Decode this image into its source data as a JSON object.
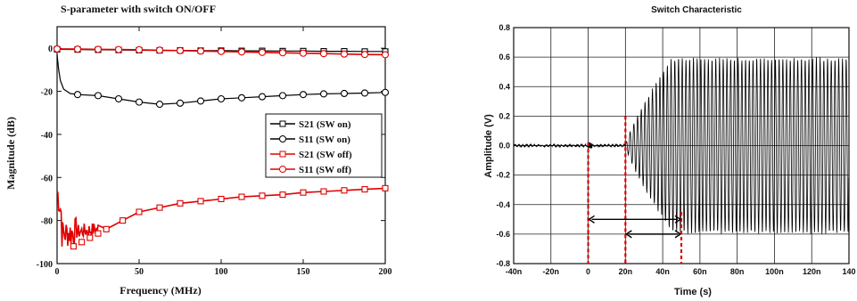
{
  "chart_data": [
    {
      "type": "line",
      "title": "S-parameter with switch ON/OFF",
      "xlabel": "Frequency (MHz)",
      "ylabel": "Magnitude (dB)",
      "xlim": [
        0,
        200
      ],
      "ylim": [
        -100,
        10
      ],
      "xticks": [
        "0",
        "50",
        "100",
        "150",
        "200"
      ],
      "yticks": [
        "0",
        "-20",
        "-40",
        "-60",
        "-80",
        "-100"
      ],
      "legend_position": "middle-right",
      "series": [
        {
          "name": "S21 (SW on)",
          "color": "#000000",
          "marker": "square",
          "x": [
            0,
            12.5,
            25,
            37.5,
            50,
            62.5,
            75,
            87.5,
            100,
            112.5,
            125,
            137.5,
            150,
            162.5,
            175,
            187.5,
            200
          ],
          "y": [
            -0.5,
            -0.6,
            -0.7,
            -0.8,
            -0.9,
            -1.0,
            -1.0,
            -1.1,
            -1.1,
            -1.2,
            -1.2,
            -1.3,
            -1.3,
            -1.4,
            -1.4,
            -1.5,
            -1.5
          ]
        },
        {
          "name": "S11 (SW on)",
          "color": "#000000",
          "marker": "circle",
          "x": [
            0,
            1,
            2,
            4,
            8,
            12.5,
            25,
            37.5,
            50,
            62.5,
            75,
            87.5,
            100,
            112.5,
            125,
            137.5,
            150,
            162.5,
            175,
            187.5,
            200
          ],
          "y": [
            -3,
            -10,
            -15,
            -19,
            -21,
            -21.5,
            -22,
            -23.5,
            -25,
            -26,
            -25.5,
            -24.5,
            -23.5,
            -23,
            -22.5,
            -22,
            -21.5,
            -21.2,
            -21,
            -20.8,
            -20.5
          ]
        },
        {
          "name": "S21 (SW off)",
          "color": "#e00000",
          "marker": "square",
          "x": [
            0,
            5,
            10,
            15,
            20,
            25,
            30,
            40,
            50,
            62.5,
            75,
            87.5,
            100,
            112.5,
            125,
            137.5,
            150,
            162.5,
            175,
            187.5,
            200
          ],
          "y": [
            -80,
            -88,
            -92,
            -90,
            -88,
            -86,
            -84,
            -80,
            -76,
            -74,
            -72,
            -71,
            -70,
            -69,
            -68.5,
            -68,
            -67,
            -66.5,
            -66,
            -65.5,
            -65
          ]
        },
        {
          "name": "S11 (SW off)",
          "color": "#e00000",
          "marker": "circle",
          "x": [
            0,
            12.5,
            25,
            37.5,
            50,
            62.5,
            75,
            87.5,
            100,
            112.5,
            125,
            137.5,
            150,
            162.5,
            175,
            187.5,
            200
          ],
          "y": [
            -0.3,
            -0.4,
            -0.5,
            -0.6,
            -0.7,
            -0.9,
            -1.1,
            -1.3,
            -1.5,
            -1.7,
            -1.9,
            -2.1,
            -2.3,
            -2.5,
            -2.7,
            -2.9,
            -3.0
          ]
        }
      ]
    },
    {
      "type": "line",
      "title": "Switch Characteristic",
      "xlabel": "Time (s)",
      "ylabel": "Amplitude (V)",
      "xlim": [
        -40,
        140
      ],
      "ylim": [
        -0.8,
        0.8
      ],
      "xticks": [
        "-40n",
        "-20n",
        "0",
        "20n",
        "40n",
        "60n",
        "80n",
        "100n",
        "120n",
        "140"
      ],
      "yticks": [
        "0.8",
        "0.6",
        "0.4",
        "0.2",
        "0.0",
        "-0.2",
        "-0.4",
        "-0.6",
        "-0.8"
      ],
      "grid": true,
      "signal": {
        "color": "#000000",
        "baseline_until_ns": 20,
        "saturation_amplitude_V": 0.6,
        "ramp_end_ns": 45
      },
      "markers": {
        "color": "#e00000",
        "vertical_dashed_lines_ns": [
          0,
          20,
          50
        ],
        "arrows": [
          {
            "from_ns": 0,
            "to_ns": 50,
            "y_V": -0.5
          },
          {
            "from_ns": 20,
            "to_ns": 50,
            "y_V": -0.6
          }
        ]
      }
    }
  ]
}
